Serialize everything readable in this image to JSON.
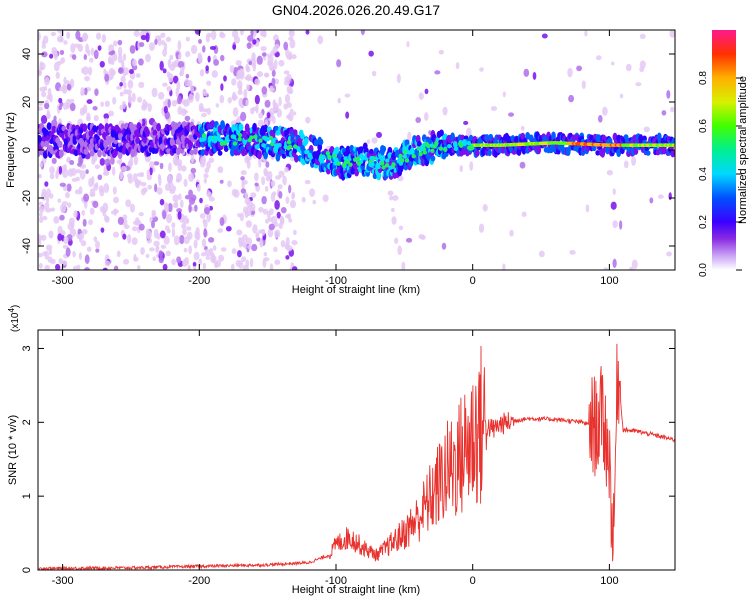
{
  "title": "GN04.2026.026.20.49.G17",
  "colors": {
    "snr_line": "#e8322e",
    "frame": "#000000",
    "colormap": [
      "#ffffff",
      "#e4c8f4",
      "#b070ea",
      "#7a10ef",
      "#2a00ff",
      "#0060ff",
      "#00e0ff",
      "#20f060",
      "#60ff00",
      "#d0f000",
      "#ffb000",
      "#ff4010",
      "#ff1060",
      "#ff3090"
    ]
  },
  "chart_data": [
    {
      "type": "heatmap",
      "panel": "spectrogram",
      "xlabel": "Height of straight line (km)",
      "ylabel": "Frequency (Hz)",
      "xlim": [
        -318,
        148
      ],
      "ylim": [
        -50,
        50
      ],
      "xticks": [
        -300,
        -200,
        -100,
        0,
        100
      ],
      "yticks": [
        -40,
        -20,
        0,
        20,
        40
      ],
      "colorbar": {
        "label": "Normalized spectral amplitude",
        "range": [
          0,
          1
        ],
        "ticks": [
          "0.0",
          "0.2",
          "0.4",
          "0.6",
          "0.8"
        ]
      },
      "ridge": {
        "x": [
          -318,
          -260,
          -200,
          -160,
          -130,
          -110,
          -95,
          -80,
          -60,
          -40,
          -20,
          0,
          20,
          60,
          100,
          148
        ],
        "y": [
          4,
          4,
          5,
          4,
          2,
          -2,
          -5,
          -4,
          -6,
          0,
          2,
          2,
          2,
          3,
          2,
          2
        ]
      }
    },
    {
      "type": "line",
      "panel": "snr",
      "xlabel": "Height of straight line (km)",
      "ylabel": "SNR (10 * v/v)",
      "y_multiplier": "(x10",
      "y_multiplier_exp": "4",
      "xlim": [
        -318,
        148
      ],
      "ylim": [
        0,
        3.25
      ],
      "xticks": [
        -300,
        -200,
        -100,
        0,
        100
      ],
      "yticks": [
        0,
        1,
        2,
        3
      ],
      "series": [
        {
          "x": [
            -318,
            -250,
            -200,
            -150,
            -120,
            -105,
            -100,
            -90,
            -80,
            -70,
            -60,
            -50,
            -40,
            -30,
            -20,
            -10,
            0,
            5,
            10,
            15,
            20,
            30,
            40,
            60,
            80,
            90,
            95,
            100,
            103,
            106,
            110,
            120,
            130,
            148
          ],
          "y": [
            0.02,
            0.03,
            0.05,
            0.07,
            0.1,
            0.2,
            0.35,
            0.45,
            0.3,
            0.2,
            0.35,
            0.5,
            0.7,
            1.0,
            1.3,
            1.5,
            1.8,
            1.95,
            1.95,
            1.9,
            1.97,
            2.02,
            2.05,
            2.04,
            2.0,
            1.95,
            2.1,
            1.5,
            0.3,
            2.8,
            1.9,
            1.88,
            1.84,
            1.76
          ]
        }
      ]
    }
  ]
}
